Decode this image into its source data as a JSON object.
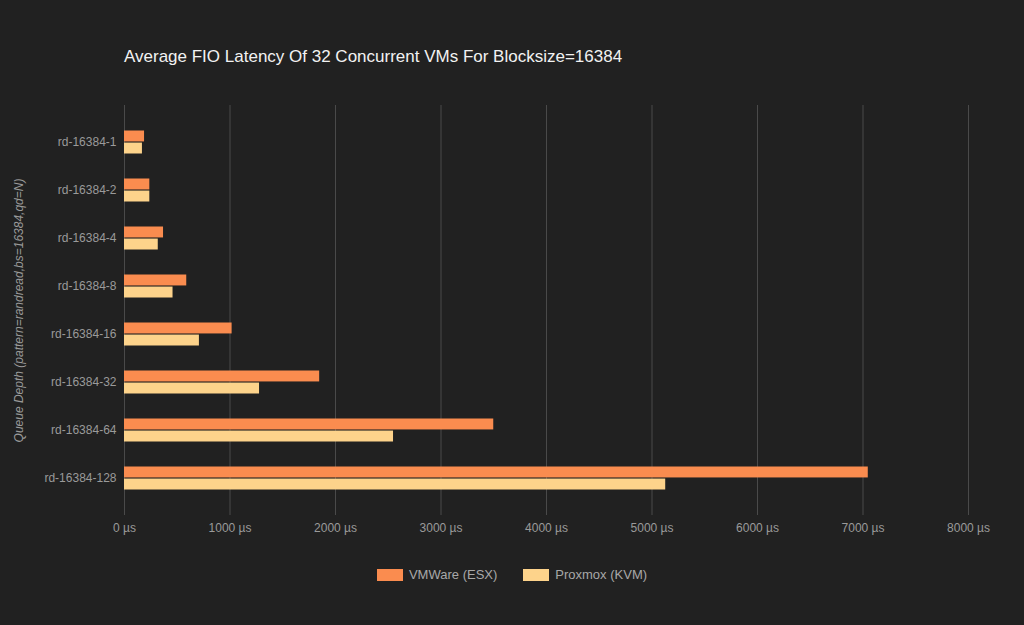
{
  "chart_data": {
    "type": "bar",
    "orientation": "horizontal",
    "title": "Average FIO Latency Of 32 Concurrent VMs For Blocksize=16384",
    "y_label": "Queue Depth (pattern=randread,bs=16384,qd=N)",
    "categories": [
      "rd-16384-1",
      "rd-16384-2",
      "rd-16384-4",
      "rd-16384-8",
      "rd-16384-16",
      "rd-16384-32",
      "rd-16384-64",
      "rd-16384-128"
    ],
    "series": [
      {
        "name": "VMWare (ESX)",
        "color": "#fa8c4f",
        "values": [
          190,
          240,
          370,
          590,
          1020,
          1850,
          3500,
          7050
        ]
      },
      {
        "name": "Proxmox (KVM)",
        "color": "#fdd38b",
        "values": [
          170,
          240,
          320,
          460,
          710,
          1280,
          2550,
          5130
        ]
      }
    ],
    "xlim": [
      0,
      8000
    ],
    "xticks": [
      {
        "value": 0,
        "label": "0 µs"
      },
      {
        "value": 1000,
        "label": "1000 µs"
      },
      {
        "value": 2000,
        "label": "2000 µs"
      },
      {
        "value": 3000,
        "label": "3000 µs"
      },
      {
        "value": 4000,
        "label": "4000 µs"
      },
      {
        "value": 5000,
        "label": "5000 µs"
      },
      {
        "value": 6000,
        "label": "6000 µs"
      },
      {
        "value": 7000,
        "label": "7000 µs"
      },
      {
        "value": 8000,
        "label": "8000 µs"
      }
    ],
    "grid": true,
    "legend": "bottom"
  }
}
